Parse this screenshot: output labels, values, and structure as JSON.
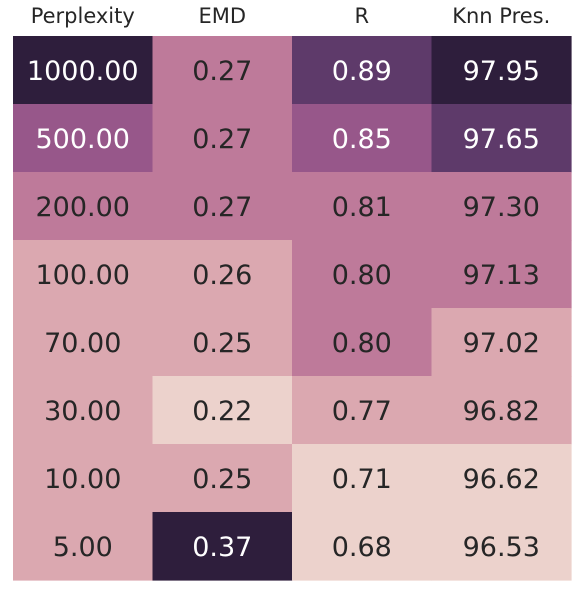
{
  "chart_data": {
    "type": "heatmap",
    "title": "",
    "xlabel": "",
    "ylabel": "",
    "columns": [
      "Perplexity",
      "EMD",
      "R",
      "Knn Pres."
    ],
    "rows": [
      [
        "1000.00",
        "0.27",
        "0.89",
        "97.95"
      ],
      [
        "500.00",
        "0.27",
        "0.85",
        "97.65"
      ],
      [
        "200.00",
        "0.27",
        "0.81",
        "97.30"
      ],
      [
        "100.00",
        "0.26",
        "0.80",
        "97.13"
      ],
      [
        "70.00",
        "0.25",
        "0.80",
        "97.02"
      ],
      [
        "30.00",
        "0.22",
        "0.77",
        "96.82"
      ],
      [
        "10.00",
        "0.25",
        "0.71",
        "96.62"
      ],
      [
        "5.00",
        "0.37",
        "0.68",
        "96.53"
      ]
    ],
    "cell_colors": [
      [
        "#2e1e3c",
        "#be7a9a",
        "#5e3a6a",
        "#2e1e3c"
      ],
      [
        "#97578a",
        "#be7a9a",
        "#97578a",
        "#5e3a6a"
      ],
      [
        "#be7a9a",
        "#be7a9a",
        "#be7a9a",
        "#be7a9a"
      ],
      [
        "#dba8b0",
        "#dba8b0",
        "#be7a9a",
        "#be7a9a"
      ],
      [
        "#dba8b0",
        "#dba8b0",
        "#be7a9a",
        "#dba8b0"
      ],
      [
        "#dba8b0",
        "#ecd2cc",
        "#dba8b0",
        "#dba8b0"
      ],
      [
        "#dba8b0",
        "#dba8b0",
        "#ecd2cc",
        "#ecd2cc"
      ],
      [
        "#dba8b0",
        "#2e1e3c",
        "#ecd2cc",
        "#ecd2cc"
      ]
    ],
    "dark_text_color": "#262626",
    "light_text_color": "#ffffff",
    "legend": "none",
    "grid": false
  }
}
